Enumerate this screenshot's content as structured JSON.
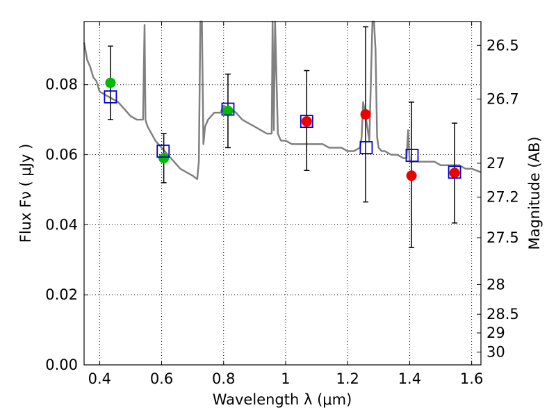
{
  "chart_data": {
    "type": "scatter",
    "title": "",
    "xlabel": "Wavelength  λ (μm)",
    "ylabel": "Flux  Fν  ( μJy )",
    "y2label": "Magnitude (AB)",
    "xlim": [
      0.35,
      1.63
    ],
    "ylim": [
      0.0,
      0.098
    ],
    "x_ticks": [
      0.4,
      0.6,
      0.8,
      1.0,
      1.2,
      1.4,
      1.6
    ],
    "x_tick_labels": [
      "0.4",
      "0.6",
      "0.8",
      "1",
      "1.2",
      "1.4",
      "1.6"
    ],
    "y_ticks": [
      0.0,
      0.02,
      0.04,
      0.06,
      0.08
    ],
    "y_tick_labels": [
      "0.00",
      "0.02",
      "0.04",
      "0.06",
      "0.08"
    ],
    "mag_ticks": [
      26.5,
      26.7,
      27,
      27.2,
      27.5,
      28,
      28.5,
      29,
      30
    ],
    "mag_tick_labels": [
      "26.5",
      "26.7",
      "27",
      "27.2",
      "27.5",
      "28",
      "28.5",
      "29",
      "30"
    ],
    "grid": true,
    "colors": {
      "template": "#808080",
      "green_points": "#00bb00",
      "red_points": "#ee0000",
      "model_squares": "#0000cc",
      "errorbars": "#000000"
    },
    "template_spectrum": {
      "x": [
        0.35,
        0.36,
        0.37,
        0.38,
        0.39,
        0.4,
        0.42,
        0.44,
        0.46,
        0.48,
        0.5,
        0.52,
        0.54,
        0.545,
        0.548,
        0.551,
        0.555,
        0.58,
        0.6,
        0.62,
        0.64,
        0.66,
        0.68,
        0.7,
        0.715,
        0.72,
        0.725,
        0.73,
        0.735,
        0.74,
        0.75,
        0.77,
        0.79,
        0.8,
        0.82,
        0.84,
        0.86,
        0.88,
        0.9,
        0.92,
        0.94,
        0.955,
        0.958,
        0.962,
        0.966,
        0.975,
        0.98,
        0.985,
        1.0,
        1.02,
        1.04,
        1.06,
        1.08,
        1.1,
        1.12,
        1.14,
        1.16,
        1.18,
        1.2,
        1.22,
        1.24,
        1.245,
        1.25,
        1.26,
        1.27,
        1.28,
        1.285,
        1.29,
        1.295,
        1.3,
        1.31,
        1.32,
        1.34,
        1.36,
        1.38,
        1.39,
        1.395,
        1.4,
        1.42,
        1.44,
        1.46,
        1.48,
        1.5,
        1.52,
        1.54,
        1.56,
        1.58,
        1.6,
        1.63
      ],
      "y": [
        0.092,
        0.087,
        0.085,
        0.082,
        0.081,
        0.078,
        0.077,
        0.076,
        0.075,
        0.073,
        0.071,
        0.07,
        0.07,
        0.097,
        0.07,
        0.069,
        0.068,
        0.064,
        0.062,
        0.06,
        0.058,
        0.056,
        0.055,
        0.054,
        0.053,
        0.058,
        0.098,
        0.098,
        0.063,
        0.068,
        0.07,
        0.072,
        0.072,
        0.074,
        0.073,
        0.072,
        0.07,
        0.069,
        0.068,
        0.067,
        0.066,
        0.066,
        0.098,
        0.067,
        0.098,
        0.066,
        0.065,
        0.064,
        0.064,
        0.063,
        0.063,
        0.063,
        0.063,
        0.063,
        0.063,
        0.062,
        0.062,
        0.062,
        0.061,
        0.061,
        0.062,
        0.065,
        0.075,
        0.07,
        0.064,
        0.098,
        0.098,
        0.09,
        0.065,
        0.062,
        0.061,
        0.061,
        0.06,
        0.06,
        0.059,
        0.059,
        0.067,
        0.058,
        0.058,
        0.058,
        0.058,
        0.058,
        0.057,
        0.057,
        0.057,
        0.057,
        0.056,
        0.056,
        0.055
      ]
    },
    "series": [
      {
        "marker": "filled-circle",
        "color": "green",
        "x": [
          0.435,
          0.607,
          0.814
        ],
        "y": [
          0.0805,
          0.059,
          0.0725
        ]
      },
      {
        "marker": "filled-circle",
        "color": "red",
        "x": [
          1.068,
          1.258,
          1.406,
          1.545
        ],
        "y": [
          0.0695,
          0.0715,
          0.054,
          0.0548
        ]
      },
      {
        "marker": "open-square",
        "color": "blue",
        "x": [
          0.435,
          0.605,
          0.814,
          1.068,
          1.26,
          1.408,
          1.545
        ],
        "y": [
          0.0765,
          0.061,
          0.073,
          0.0695,
          0.062,
          0.0598,
          0.055
        ]
      }
    ],
    "errorbars": [
      {
        "x": 0.435,
        "low": 0.07,
        "high": 0.091
      },
      {
        "x": 0.607,
        "low": 0.052,
        "high": 0.066
      },
      {
        "x": 0.814,
        "low": 0.062,
        "high": 0.083
      },
      {
        "x": 1.068,
        "low": 0.0555,
        "high": 0.084
      },
      {
        "x": 1.258,
        "low": 0.0465,
        "high": 0.0965
      },
      {
        "x": 1.406,
        "low": 0.0335,
        "high": 0.075
      },
      {
        "x": 1.545,
        "low": 0.0405,
        "high": 0.069
      }
    ]
  }
}
